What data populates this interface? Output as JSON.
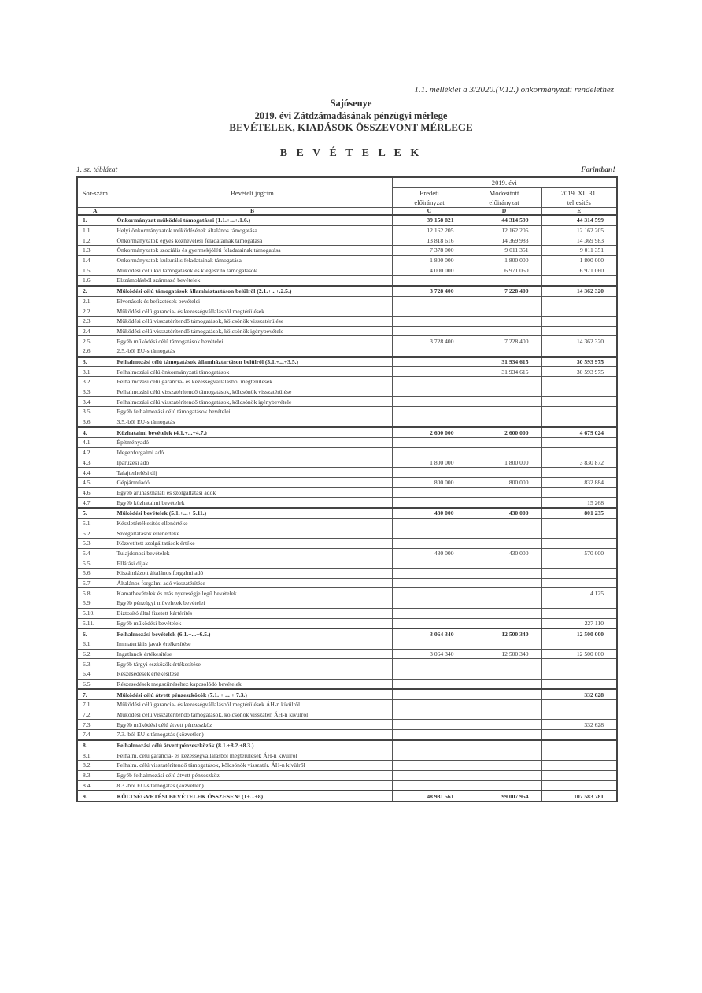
{
  "reference": "1.1. melléklet a 3/2020.(V.12.) önkormányzati rendelethez",
  "title_line1": "Sajósenye",
  "title_line2": "2019. évi Zátdzámadásának pénzügyi mérlege",
  "title_line3": "BEVÉTELEK, KIADÁSOK ÖSSZEVONT MÉRLEGE",
  "section_title": "B E V É T E L E K",
  "table_number": "1. sz. táblázat",
  "unit": "Forintban!",
  "header": {
    "sorszam": "Sor-szám",
    "jogcim": "Bevételi jogcím",
    "year": "2019. évi",
    "col_c": "Eredeti előirányzat",
    "col_d": "Módosított előirányzat",
    "col_e": "2019. XII.31. teljesítés",
    "letters": [
      "A",
      "B",
      "C",
      "D",
      "E"
    ]
  },
  "rows": [
    {
      "n": "1.",
      "label": "Önkormányzat működési támogatásai (1.1.+...+.1.6.)",
      "c": "39 158 821",
      "d": "44 314 599",
      "e": "44 314 599",
      "total": true
    },
    {
      "n": "1.1.",
      "label": "Helyi önkormányzatok működésének általános támogatása",
      "c": "12 162 205",
      "d": "12 162 205",
      "e": "12 162 205"
    },
    {
      "n": "1.2.",
      "label": "Önkormányzatok egyes köznevelési feladatainak támogatása",
      "c": "13 818 616",
      "d": "14 369 983",
      "e": "14 369 983"
    },
    {
      "n": "1.3.",
      "label": "Önkormányzatok szociális és gyermekjóléti feladatainak támogatása",
      "c": "7 378 000",
      "d": "9 011 351",
      "e": "9 011 351"
    },
    {
      "n": "1.4.",
      "label": "Önkormányzatok kulturális feladatainak támogatása",
      "c": "1 800 000",
      "d": "1 800 000",
      "e": "1 800 000"
    },
    {
      "n": "1.5.",
      "label": "Működési célú kvi támogatások és kiegészítő támogatások",
      "c": "4 000 000",
      "d": "6 971 060",
      "e": "6 971 060"
    },
    {
      "n": "1.6.",
      "label": "Elszámolásból származó bevételek",
      "c": "",
      "d": "",
      "e": ""
    },
    {
      "n": "2.",
      "label": "Működési célú támogatások államháztartáson belülről (2.1.+...+.2.5.)",
      "c": "3 728 400",
      "d": "7 228 400",
      "e": "14 362 320",
      "total": true
    },
    {
      "n": "2.1.",
      "label": "Elvonások és befizetések bevételei",
      "c": "",
      "d": "",
      "e": ""
    },
    {
      "n": "2.2.",
      "label": "Működési célú garancia- és kezességvállalásból megtérülések",
      "c": "",
      "d": "",
      "e": ""
    },
    {
      "n": "2.3.",
      "label": "Működési célú visszatérítendő támogatások, kölcsönök visszatérülése",
      "c": "",
      "d": "",
      "e": ""
    },
    {
      "n": "2.4.",
      "label": "Működési célú visszatérítendő támogatások, kölcsönök igénybevétele",
      "c": "",
      "d": "",
      "e": ""
    },
    {
      "n": "2.5.",
      "label": "Egyéb működési célú támogatások bevételei",
      "c": "3 728 400",
      "d": "7 228 400",
      "e": "14 362 320"
    },
    {
      "n": "2.6.",
      "label": "2.5.-ből EU-s támogatás",
      "c": "",
      "d": "",
      "e": ""
    },
    {
      "n": "3.",
      "label": "Felhalmozási célú támogatások államháztartáson belülről (3.1.+...+3.5.)",
      "c": "",
      "d": "31 934 615",
      "e": "30 593 975",
      "total": true
    },
    {
      "n": "3.1.",
      "label": "Felhalmozási célú önkormányzati támogatások",
      "c": "",
      "d": "31 934 615",
      "e": "30 593 975"
    },
    {
      "n": "3.2.",
      "label": "Felhalmozási célú garancia- és kezességvállalásból megtérülések",
      "c": "",
      "d": "",
      "e": ""
    },
    {
      "n": "3.3.",
      "label": "Felhalmozási célú visszatérítendő támogatások, kölcsönök visszatérülése",
      "c": "",
      "d": "",
      "e": ""
    },
    {
      "n": "3.4.",
      "label": "Felhalmozási célú visszatérítendő támogatások, kölcsönök igénybevétele",
      "c": "",
      "d": "",
      "e": ""
    },
    {
      "n": "3.5.",
      "label": "Egyéb felhalmozási célú támogatások bevételei",
      "c": "",
      "d": "",
      "e": ""
    },
    {
      "n": "3.6.",
      "label": "3.5.-ből EU-s támogatás",
      "c": "",
      "d": "",
      "e": ""
    },
    {
      "n": "4.",
      "label": "Közhatalmi bevételek (4.1.+...+4.7.)",
      "c": "2 600 000",
      "d": "2 600 000",
      "e": "4 679 024",
      "total": true
    },
    {
      "n": "4.1.",
      "label": "Építményadó",
      "c": "",
      "d": "",
      "e": ""
    },
    {
      "n": "4.2.",
      "label": "Idegenforgalmi adó",
      "c": "",
      "d": "",
      "e": ""
    },
    {
      "n": "4.3.",
      "label": "Iparűzési adó",
      "c": "1 800 000",
      "d": "1 800 000",
      "e": "3 830 872"
    },
    {
      "n": "4.4.",
      "label": "Talajterhelési díj",
      "c": "",
      "d": "",
      "e": ""
    },
    {
      "n": "4.5.",
      "label": "Gépjárműadó",
      "c": "800 000",
      "d": "800 000",
      "e": "832 884"
    },
    {
      "n": "4.6.",
      "label": "Egyéb áruhasználati és szolgáltatási adók",
      "c": "",
      "d": "",
      "e": ""
    },
    {
      "n": "4.7.",
      "label": "Egyéb közhatalmi bevételek",
      "c": "",
      "d": "",
      "e": "15 268"
    },
    {
      "n": "5.",
      "label": "Működési bevételek (5.1.+...+ 5.11.)",
      "c": "430 000",
      "d": "430 000",
      "e": "801 235",
      "total": true
    },
    {
      "n": "5.1.",
      "label": "Készletértékesítés ellenértéke",
      "c": "",
      "d": "",
      "e": ""
    },
    {
      "n": "5.2.",
      "label": "Szolgáltatások ellenértéke",
      "c": "",
      "d": "",
      "e": ""
    },
    {
      "n": "5.3.",
      "label": "Közvetített szolgáltatások értéke",
      "c": "",
      "d": "",
      "e": ""
    },
    {
      "n": "5.4.",
      "label": "Tulajdonosi bevételek",
      "c": "430 000",
      "d": "430 000",
      "e": "570 000"
    },
    {
      "n": "5.5.",
      "label": "Ellátási díjak",
      "c": "",
      "d": "",
      "e": ""
    },
    {
      "n": "5.6.",
      "label": "Kiszámlázott általános forgalmi adó",
      "c": "",
      "d": "",
      "e": ""
    },
    {
      "n": "5.7.",
      "label": "Általános forgalmi adó visszatérítése",
      "c": "",
      "d": "",
      "e": ""
    },
    {
      "n": "5.8.",
      "label": "Kamatbevételek és más nyereségjellegű bevételek",
      "c": "",
      "d": "",
      "e": "4 125"
    },
    {
      "n": "5.9.",
      "label": "Egyéb pénzügyi műveletek bevételei",
      "c": "",
      "d": "",
      "e": ""
    },
    {
      "n": "5.10.",
      "label": "Biztosító által fizetett kártérítés",
      "c": "",
      "d": "",
      "e": ""
    },
    {
      "n": "5.11.",
      "label": "Egyéb működési bevételek",
      "c": "",
      "d": "",
      "e": "227 110"
    },
    {
      "n": "6.",
      "label": "Felhalmozási bevételek (6.1.+...+6.5.)",
      "c": "3 064 340",
      "d": "12 500 340",
      "e": "12 500 000",
      "total": true
    },
    {
      "n": "6.1.",
      "label": "Immateriális javak értékesítése",
      "c": "",
      "d": "",
      "e": ""
    },
    {
      "n": "6.2.",
      "label": "Ingatlanok értékesítése",
      "c": "3 064 340",
      "d": "12 500 340",
      "e": "12 500 000"
    },
    {
      "n": "6.3.",
      "label": "Egyéb tárgyi eszközök értékesítése",
      "c": "",
      "d": "",
      "e": ""
    },
    {
      "n": "6.4.",
      "label": "Részesedések értékesítése",
      "c": "",
      "d": "",
      "e": ""
    },
    {
      "n": "6.5.",
      "label": "Részesedések megszűnéséhez kapcsolódó bevételek",
      "c": "",
      "d": "",
      "e": ""
    },
    {
      "n": "7.",
      "label": "Működési célú átvett pénzeszközök (7.1. + ... + 7.3.)",
      "c": "",
      "d": "",
      "e": "332 628",
      "total": true
    },
    {
      "n": "7.1.",
      "label": "Működési célú garancia- és kezességvállalásból megtérülések ÁH-n kívülről",
      "c": "",
      "d": "",
      "e": ""
    },
    {
      "n": "7.2.",
      "label": "Működési célú visszatérítendő támogatások, kölcsönök visszatér. ÁH-n kívülről",
      "c": "",
      "d": "",
      "e": ""
    },
    {
      "n": "7.3.",
      "label": "Egyéb működési célú átvett pénzeszköz",
      "c": "",
      "d": "",
      "e": "332 628"
    },
    {
      "n": "7.4.",
      "label": "7.3.-ból EU-s támogatás (közvetlen)",
      "c": "",
      "d": "",
      "e": ""
    },
    {
      "n": "8.",
      "label": "Felhalmozási célú átvett pénzeszközök (8.1.+8.2.+8.3.)",
      "c": "",
      "d": "",
      "e": "",
      "total": true
    },
    {
      "n": "8.1.",
      "label": "Felhalm. célú garancia- és kezességvállalásból megtérülések ÁH-n kívülről",
      "c": "",
      "d": "",
      "e": ""
    },
    {
      "n": "8.2.",
      "label": "Felhalm. célú visszatérítendő támogatások, kölcsönök visszatér. ÁH-n kívülről",
      "c": "",
      "d": "",
      "e": ""
    },
    {
      "n": "8.3.",
      "label": "Egyéb felhalmozási célú átvett pénzeszköz",
      "c": "",
      "d": "",
      "e": ""
    },
    {
      "n": "8.4.",
      "label": "8.3.-ból EU-s támogatás (közvetlen)",
      "c": "",
      "d": "",
      "e": ""
    },
    {
      "n": "9.",
      "label": "KÖLTSÉGVETÉSI BEVÉTELEK ÖSSZESEN: (1+...+8)",
      "c": "48 981 561",
      "d": "99 007 954",
      "e": "107 583 781",
      "total": true
    }
  ]
}
